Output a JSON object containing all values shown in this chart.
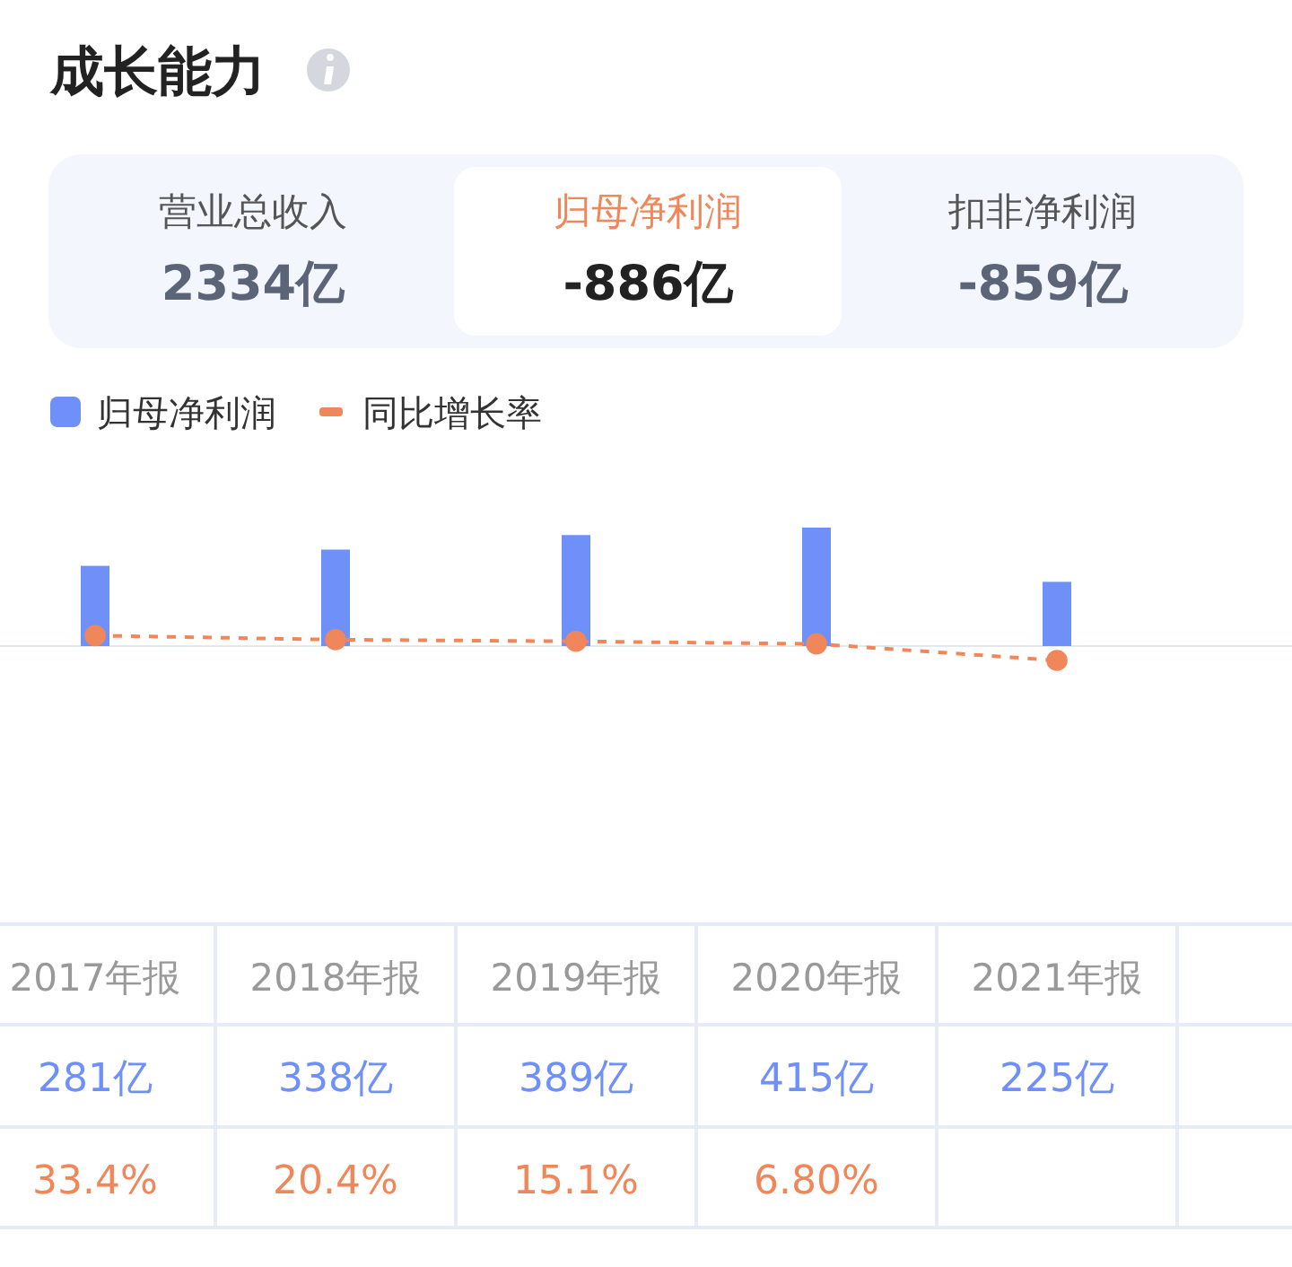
{
  "chart_data": {
    "type": "bar",
    "title": "成长能力",
    "annotations": [
      "营业总收入",
      "2334亿",
      "归母净利润",
      "-886亿",
      "扣非净利润",
      "-859亿"
    ],
    "categories": [
      "2017年报",
      "2018年报",
      "2019年报",
      "2020年报",
      "2021年报"
    ],
    "series": [
      {
        "name": "归母净利润",
        "color": "#6f8ff9",
        "values": [
          281,
          338,
          389,
          415,
          225
        ],
        "value_labels": [
          "281亿",
          "338亿",
          "389亿",
          "415亿",
          "225亿"
        ]
      },
      {
        "name": "同比增长率",
        "type": "line",
        "axis": "y2",
        "color": "#f0875a",
        "marker": "circle",
        "line_style": "dashed",
        "values": [
          33.4,
          20.4,
          15.1,
          6.8,
          -45.8
        ],
        "value_labels": [
          "33.4%",
          "20.4%",
          "15.1%",
          "6.80%",
          null
        ]
      }
    ],
    "legend": "top left"
  }
}
